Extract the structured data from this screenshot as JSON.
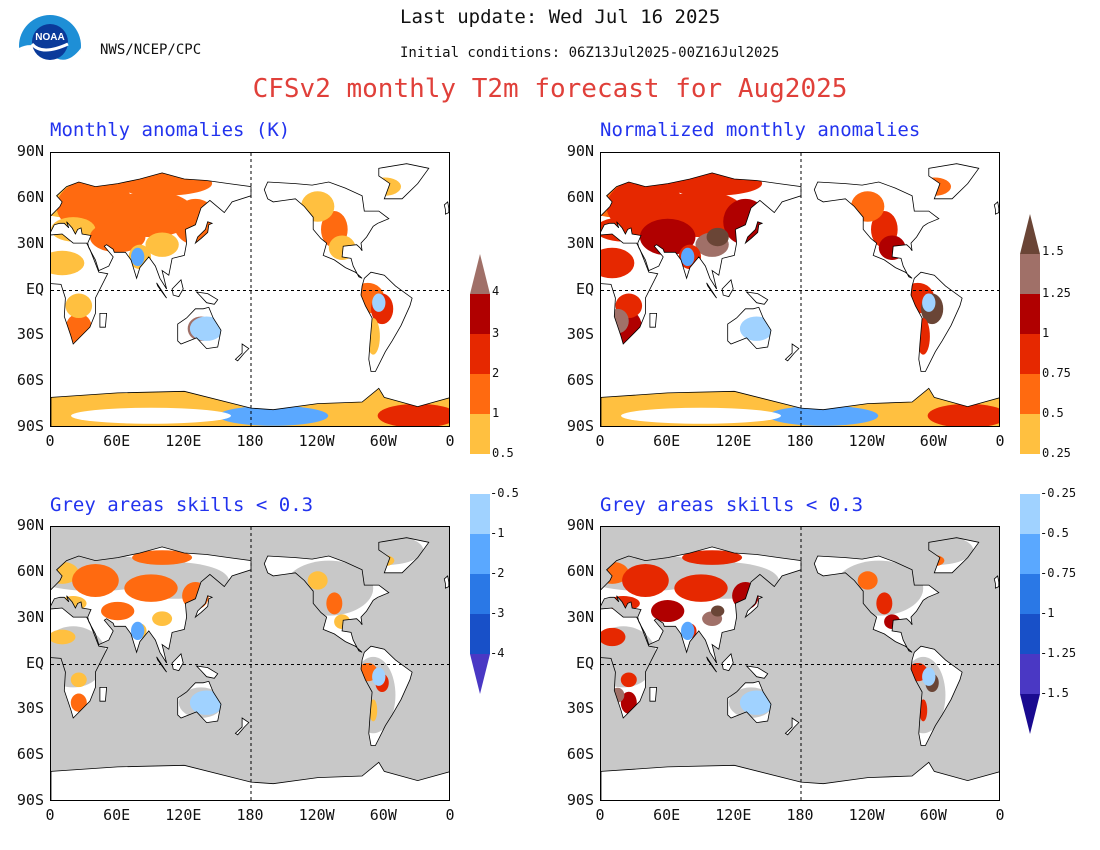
{
  "header": {
    "last_update": "Last update: Wed Jul 16 2025",
    "initial_conditions": "Initial conditions: 06Z13Jul2025-00Z16Jul2025",
    "org": "NWS/NCEP/CPC",
    "logo_text": "NOAA",
    "title": "CFSv2 monthly T2m forecast for Aug2025"
  },
  "panels": {
    "top_left": {
      "title": "Monthly anomalies (K)"
    },
    "top_right": {
      "title": "Normalized monthly anomalies"
    },
    "bottom_left": {
      "title": "Grey areas skills < 0.3"
    },
    "bottom_right": {
      "title": "Grey areas skills < 0.3"
    }
  },
  "axes": {
    "lat_labels": [
      "90N",
      "60N",
      "30N",
      "EQ",
      "30S",
      "60S",
      "90S"
    ],
    "lon_labels": [
      "0",
      "60E",
      "120E",
      "180",
      "120W",
      "60W",
      "0"
    ]
  },
  "colorbar_left": {
    "warm_labels": [
      "4",
      "3",
      "2",
      "1",
      "0.5"
    ],
    "cool_labels": [
      "-0.5",
      "-1",
      "-2",
      "-3",
      "-4"
    ]
  },
  "colorbar_right": {
    "warm_labels": [
      "1.5",
      "1.25",
      "1",
      "0.75",
      "0.5",
      "0.25"
    ],
    "cool_labels": [
      "-0.25",
      "-0.5",
      "-0.75",
      "-1",
      "-1.25",
      "-1.5"
    ]
  },
  "colors": {
    "warm": [
      "#ffc040",
      "#ff6a10",
      "#e62800",
      "#b00000",
      "#a07068",
      "#6a4536"
    ],
    "cool": [
      "#a0d2ff",
      "#5aa8ff",
      "#2a78e6",
      "#1850c8",
      "#4a38c4",
      "#1a0a90"
    ],
    "skill_mask_grey": "#c8c8c8",
    "title_red": "#e0403a",
    "panel_title_blue": "#2233ee"
  }
}
